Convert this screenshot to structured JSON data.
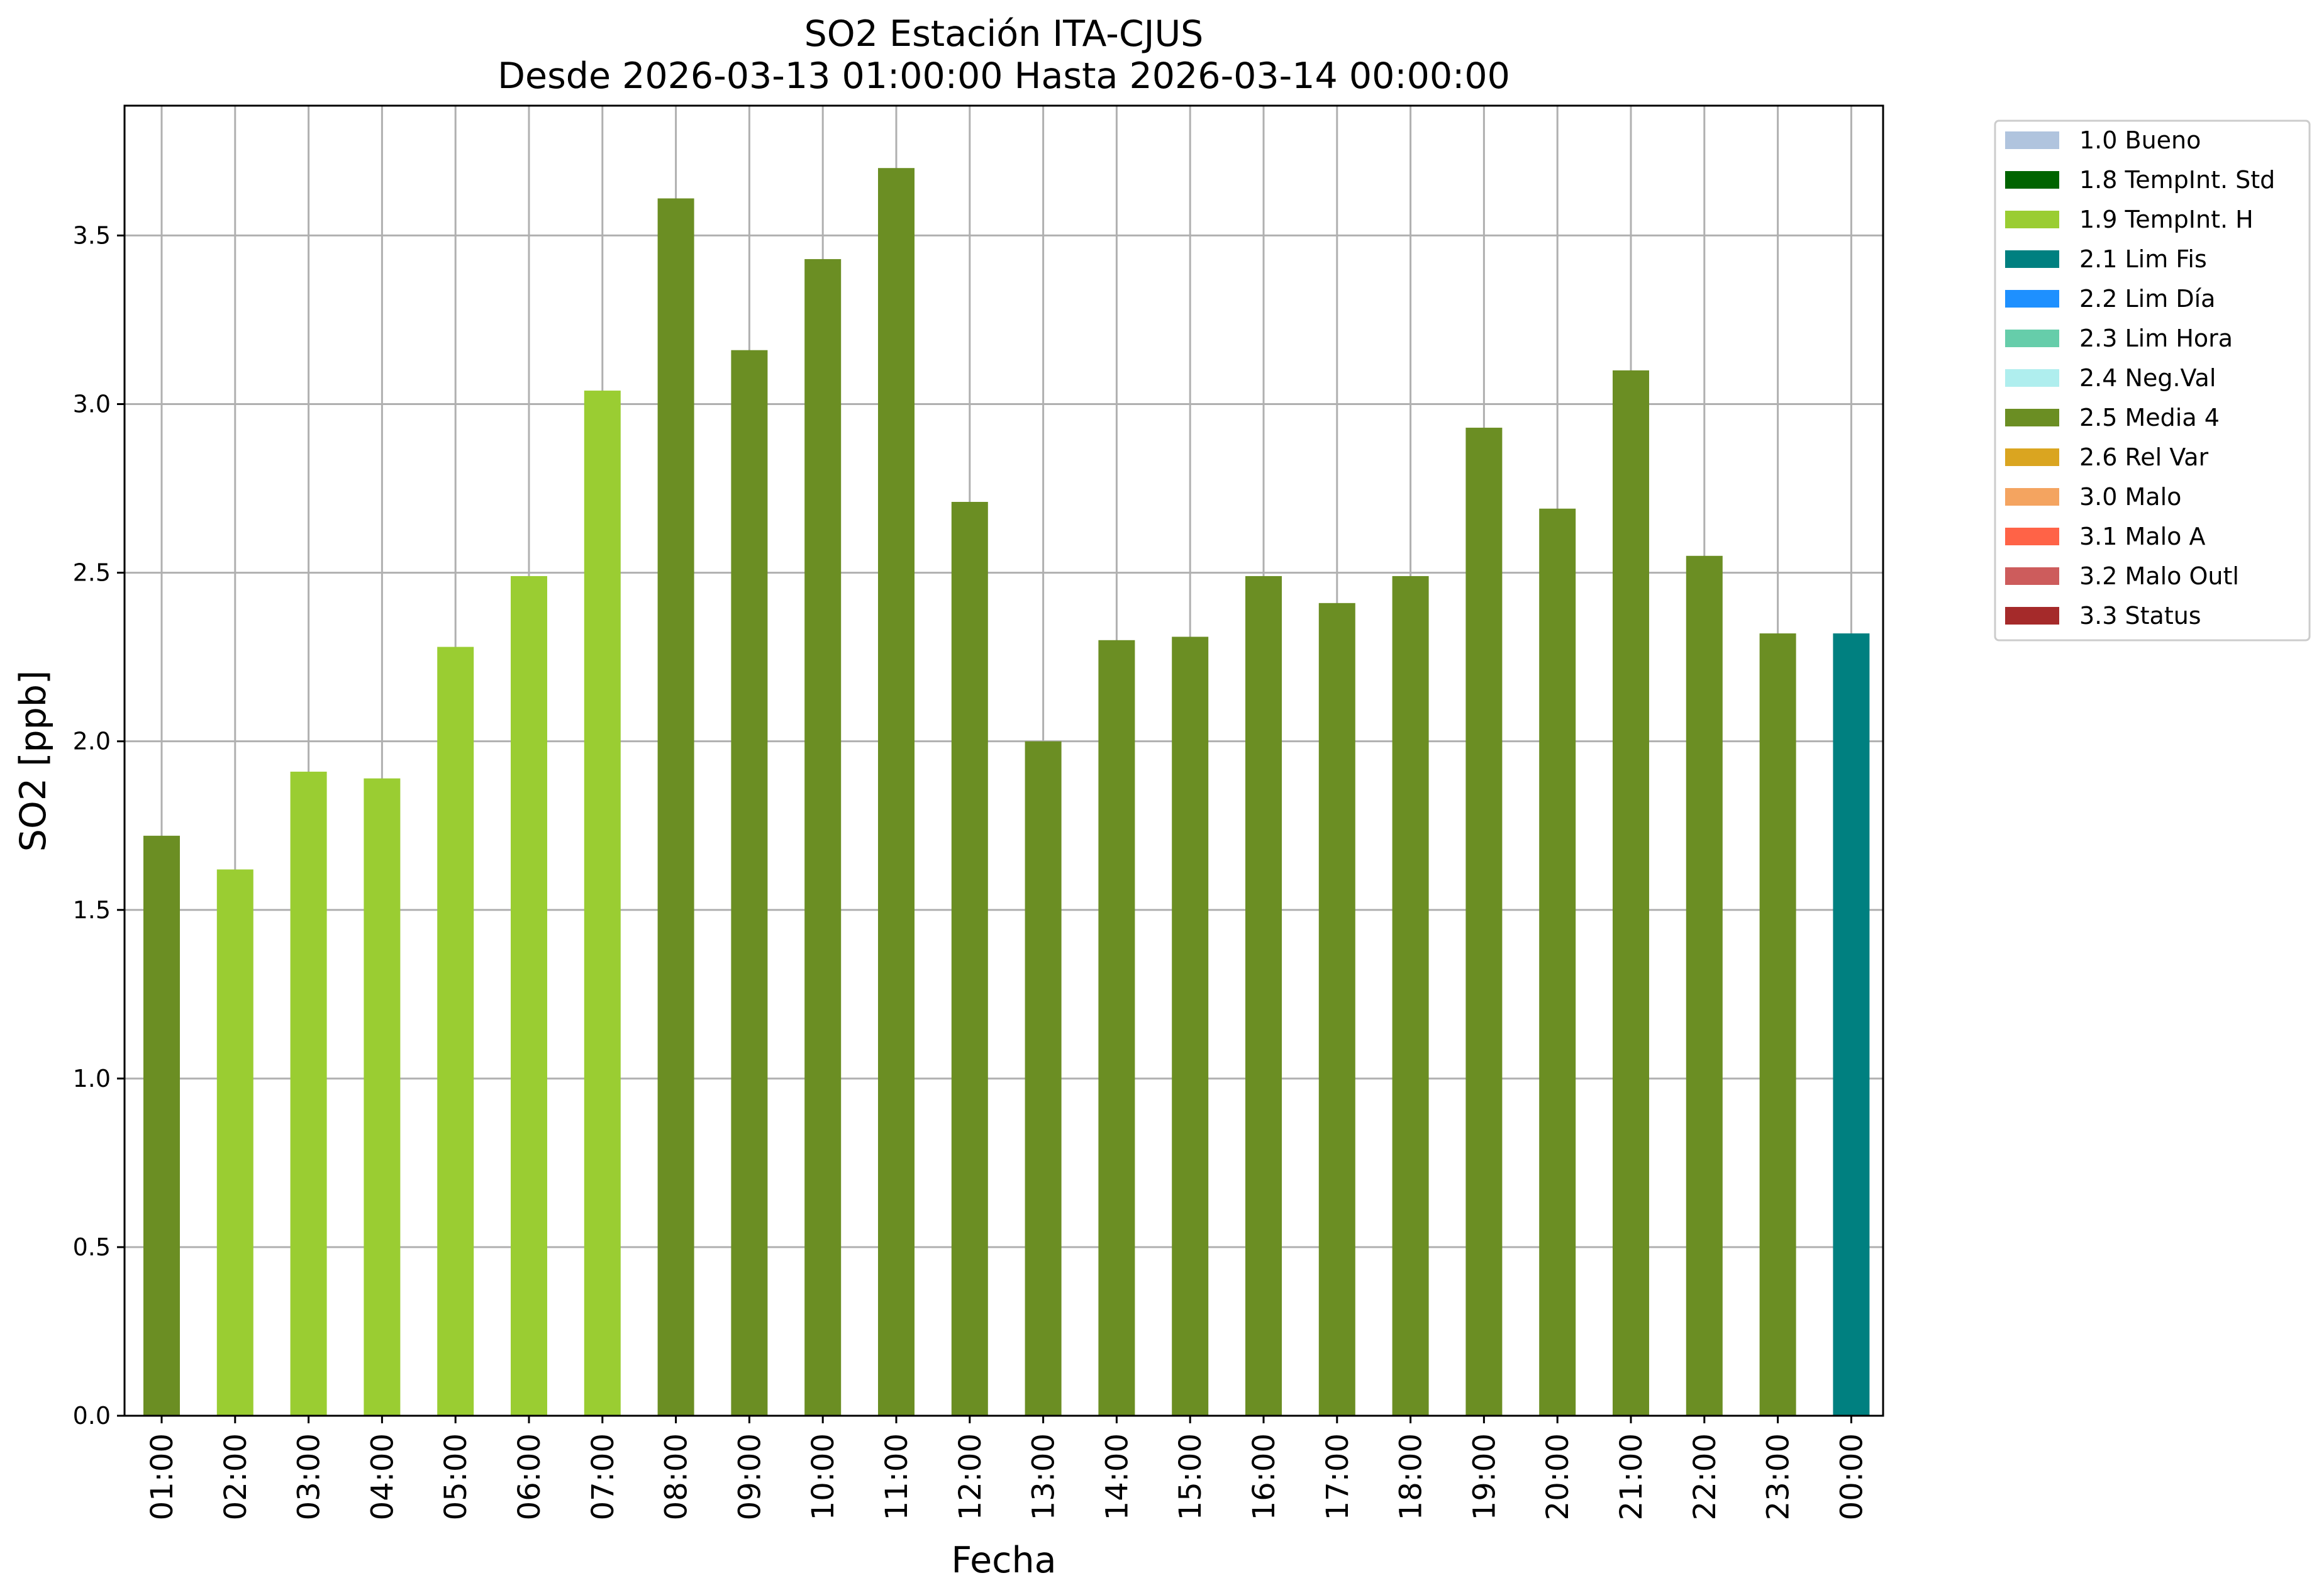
{
  "chart_data": {
    "type": "bar",
    "title": "SO2 Estación ITA-CJUS",
    "subtitle": "Desde 2026-03-13 01:00:00 Hasta 2026-03-14 00:00:00",
    "xlabel": "Fecha",
    "ylabel": "SO2 [ppb]",
    "ylim": [
      0,
      3.885
    ],
    "yticks": [
      "0.0",
      "0.5",
      "1.0",
      "1.5",
      "2.0",
      "2.5",
      "3.0",
      "3.5"
    ],
    "grid": true,
    "legend_position": "outside top-right",
    "categories": [
      "01:00",
      "02:00",
      "03:00",
      "04:00",
      "05:00",
      "06:00",
      "07:00",
      "08:00",
      "09:00",
      "10:00",
      "11:00",
      "12:00",
      "13:00",
      "14:00",
      "15:00",
      "16:00",
      "17:00",
      "18:00",
      "19:00",
      "20:00",
      "21:00",
      "22:00",
      "23:00",
      "00:00"
    ],
    "values": [
      1.72,
      1.62,
      1.91,
      1.89,
      2.28,
      2.49,
      3.04,
      3.61,
      3.16,
      3.43,
      3.7,
      2.71,
      2.0,
      2.3,
      2.31,
      2.49,
      2.41,
      2.49,
      2.93,
      2.69,
      3.1,
      2.55,
      2.32,
      2.32
    ],
    "flags": [
      "2.5 Media 4",
      "1.9 TempInt. H",
      "1.9 TempInt. H",
      "1.9 TempInt. H",
      "1.9 TempInt. H",
      "1.9 TempInt. H",
      "1.9 TempInt. H",
      "2.5 Media 4",
      "2.5 Media 4",
      "2.5 Media 4",
      "2.5 Media 4",
      "2.5 Media 4",
      "2.5 Media 4",
      "2.5 Media 4",
      "2.5 Media 4",
      "2.5 Media 4",
      "2.5 Media 4",
      "2.5 Media 4",
      "2.5 Media 4",
      "2.5 Media 4",
      "2.5 Media 4",
      "2.5 Media 4",
      "2.5 Media 4",
      "2.1 Lim Fis"
    ],
    "legend": [
      {
        "label": "1.0 Bueno",
        "color": "#b0c4de"
      },
      {
        "label": "1.8 TempInt. Std",
        "color": "#006400"
      },
      {
        "label": "1.9 TempInt. H",
        "color": "#9acd32"
      },
      {
        "label": "2.1 Lim Fis",
        "color": "#008080"
      },
      {
        "label": "2.2 Lim Día",
        "color": "#1e90ff"
      },
      {
        "label": "2.3 Lim Hora",
        "color": "#66cdaa"
      },
      {
        "label": "2.4 Neg.Val",
        "color": "#afeeee"
      },
      {
        "label": "2.5 Media 4",
        "color": "#6b8e23"
      },
      {
        "label": "2.6 Rel Var",
        "color": "#daa520"
      },
      {
        "label": "3.0 Malo",
        "color": "#f4a460"
      },
      {
        "label": "3.1 Malo A",
        "color": "#ff6347"
      },
      {
        "label": "3.2 Malo Outl",
        "color": "#cd5c5c"
      },
      {
        "label": "3.3 Status",
        "color": "#a52a2a"
      }
    ]
  }
}
